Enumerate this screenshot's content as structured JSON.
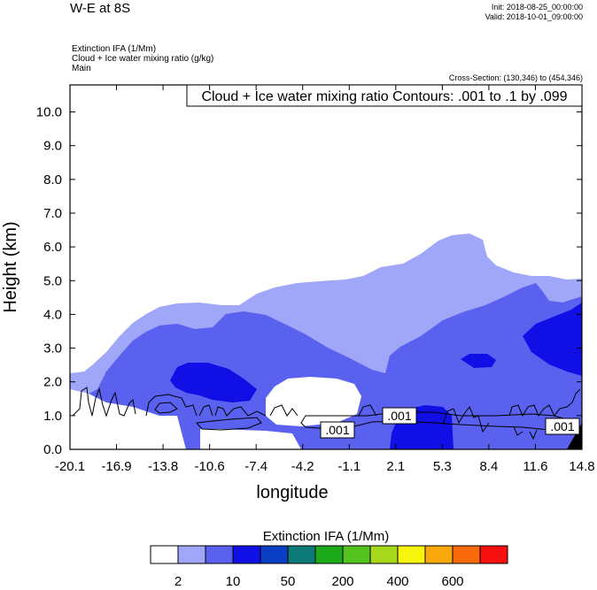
{
  "header": {
    "title": "W-E at 8S",
    "init": "Init: 2018-08-25_00:00:00",
    "valid": "Valid: 2018-10-01_09:00:00",
    "field1": "Extinction IFA   (1/Mm)",
    "field2": "Cloud + Ice water mixing ratio   (g/kg)",
    "field3": "Main",
    "cross_section": "Cross-Section: (130,346) to (454,346)"
  },
  "chart_data": {
    "type": "heatmap",
    "title": "W-E at 8S",
    "xlabel": "longitude",
    "ylabel": "Height (km)",
    "x_ticks": [
      "-20.1",
      "-16.9",
      "-13.8",
      "-10.6",
      "-7.4",
      "-4.2",
      "-1.1",
      "2.1",
      "5.3",
      "8.4",
      "11.6",
      "14.8"
    ],
    "y_ticks": [
      "0.0",
      "1.0",
      "2.0",
      "3.0",
      "4.0",
      "5.0",
      "6.0",
      "7.0",
      "8.0",
      "9.0",
      "10.0"
    ],
    "xlim": [
      -20.1,
      14.8
    ],
    "ylim": [
      0,
      10.8
    ],
    "contour_info": "Cloud + Ice water mixing ratio Contours: .001 to .1 by .099",
    "contour_labels": [
      ".001",
      ".001",
      ".001"
    ],
    "colorbar": {
      "title": "Extinction IFA  (1/Mm)",
      "labels": [
        "2",
        "10",
        "50",
        "200",
        "400",
        "600"
      ],
      "colors": [
        "#ffffff",
        "#a0a6f8",
        "#5a61ef",
        "#1010e6",
        "#0a3ec4",
        "#0c7a76",
        "#1aaa1a",
        "#55c31f",
        "#a8d81c",
        "#f8f40c",
        "#f8a808",
        "#f86a0c",
        "#f81010"
      ]
    },
    "shading_levels_used": {
      "light": "#a0a6f8",
      "medium": "#5a61ef",
      "dark": "#1010e6"
    }
  }
}
